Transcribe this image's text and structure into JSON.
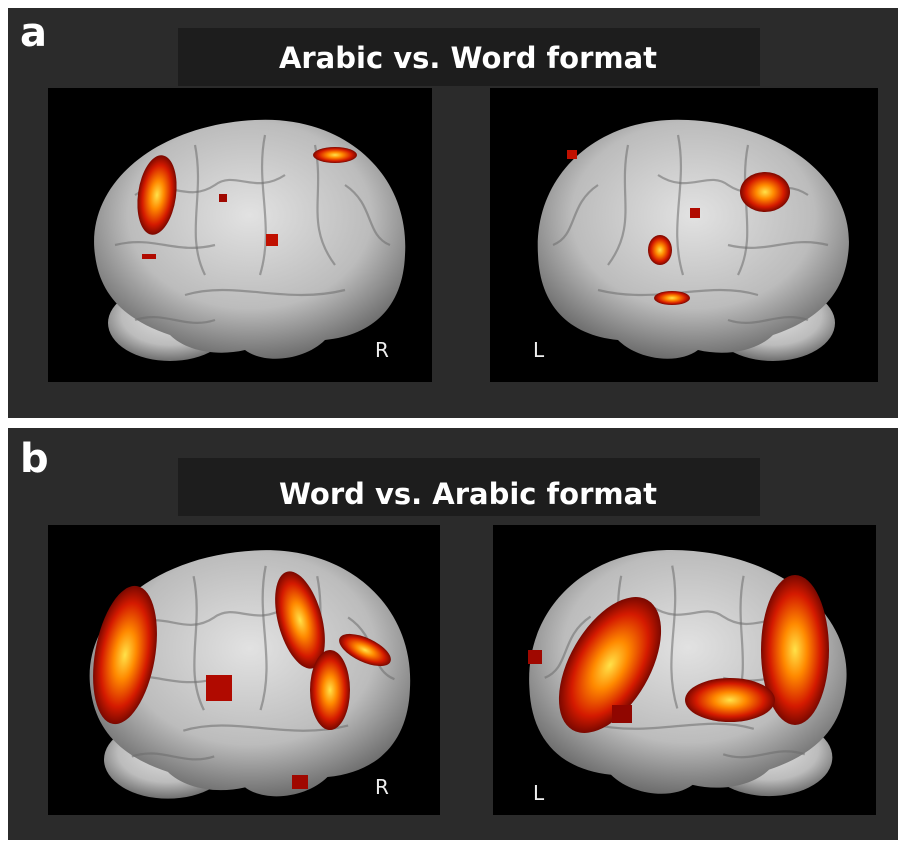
{
  "panels": [
    {
      "letter": "a",
      "title": "Arabic vs. Word format",
      "images": [
        {
          "side": "R"
        },
        {
          "side": "L"
        }
      ]
    },
    {
      "letter": "b",
      "title": "Word vs. Arabic format",
      "images": [
        {
          "side": "R"
        },
        {
          "side": "L"
        }
      ]
    }
  ]
}
